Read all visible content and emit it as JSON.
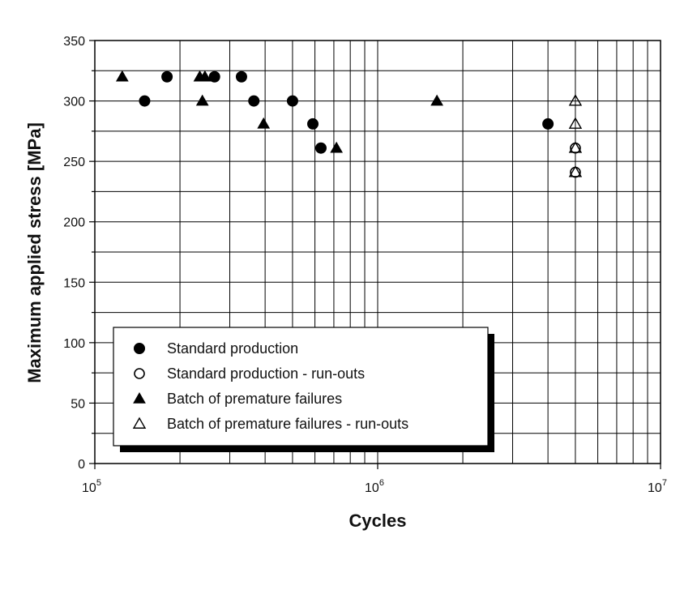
{
  "chart_data": {
    "type": "scatter",
    "title": "",
    "xlabel": "Cycles",
    "ylabel": "Maximum applied stress [MPa]",
    "x_scale": "log",
    "xlim": [
      100000,
      10000000
    ],
    "ylim": [
      0,
      350
    ],
    "x_ticks": [
      {
        "base": "10",
        "exp": "5"
      },
      {
        "base": "10",
        "exp": "6"
      },
      {
        "base": "10",
        "exp": "7"
      }
    ],
    "y_ticks": [
      "0",
      "50",
      "100",
      "150",
      "200",
      "250",
      "300",
      "350"
    ],
    "grid": true,
    "legend_position": "bottom-left",
    "series": [
      {
        "name": "Standard production",
        "marker": "filled-circle",
        "points": [
          [
            150000,
            300
          ],
          [
            180000,
            320
          ],
          [
            265000,
            320
          ],
          [
            330000,
            320
          ],
          [
            365000,
            300
          ],
          [
            500000,
            300
          ],
          [
            590000,
            281
          ],
          [
            630000,
            261
          ],
          [
            4000000,
            281
          ]
        ]
      },
      {
        "name": "Standard production - run-outs",
        "marker": "open-circle",
        "points": [
          [
            5000000,
            261
          ],
          [
            5000000,
            241
          ]
        ]
      },
      {
        "name": "Batch of premature failures",
        "marker": "filled-triangle",
        "points": [
          [
            125000,
            320
          ],
          [
            235000,
            320
          ],
          [
            245000,
            320
          ],
          [
            240000,
            300
          ],
          [
            395000,
            281
          ],
          [
            715000,
            261
          ],
          [
            1620000,
            300
          ]
        ]
      },
      {
        "name": "Batch of premature failures - run-outs",
        "marker": "open-triangle",
        "points": [
          [
            5000000,
            300
          ],
          [
            5000000,
            281
          ],
          [
            5000000,
            261
          ],
          [
            5000000,
            241
          ]
        ]
      }
    ]
  }
}
